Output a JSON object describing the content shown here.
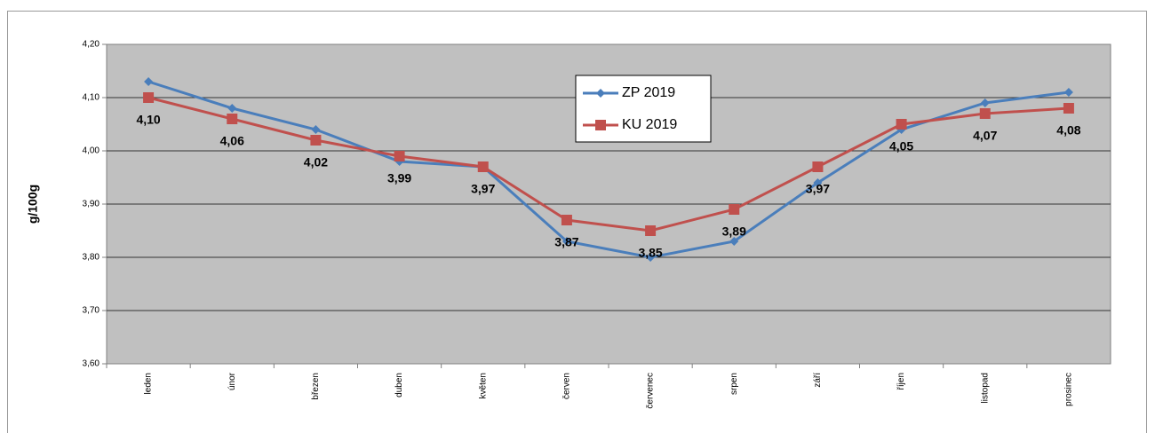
{
  "chart_data": {
    "type": "line",
    "y_label": "g/100g",
    "categories": [
      "leden",
      "únor",
      "březen",
      "duben",
      "květen",
      "červen",
      "červenec",
      "srpen",
      "září",
      "říjen",
      "listopad",
      "prosinec"
    ],
    "series": [
      {
        "name": "ZP 2019",
        "color": "#4a7ebb",
        "marker": "diamond",
        "values": [
          4.13,
          4.08,
          4.04,
          3.98,
          3.97,
          3.83,
          3.8,
          3.83,
          3.94,
          4.04,
          4.09,
          4.11
        ]
      },
      {
        "name": "KU 2019",
        "color": "#c0504d",
        "marker": "square",
        "values": [
          4.1,
          4.06,
          4.02,
          3.99,
          3.97,
          3.87,
          3.85,
          3.89,
          3.97,
          4.05,
          4.07,
          4.08
        ],
        "value_labels": [
          "4,10",
          "4,06",
          "4,02",
          "3,99",
          "3,97",
          "3,87",
          "3,85",
          "3,89",
          "3,97",
          "4,05",
          "4,07",
          "4,08"
        ]
      }
    ],
    "ylim": [
      3.6,
      4.2
    ],
    "yticks": [
      {
        "value": 3.6,
        "label": "3,60"
      },
      {
        "value": 3.7,
        "label": "3,70"
      },
      {
        "value": 3.8,
        "label": "3,80"
      },
      {
        "value": 3.9,
        "label": "3,90"
      },
      {
        "value": 4.0,
        "label": "4,00"
      },
      {
        "value": 4.1,
        "label": "4,10"
      },
      {
        "value": 4.2,
        "label": "4,20"
      }
    ],
    "grid": true
  }
}
